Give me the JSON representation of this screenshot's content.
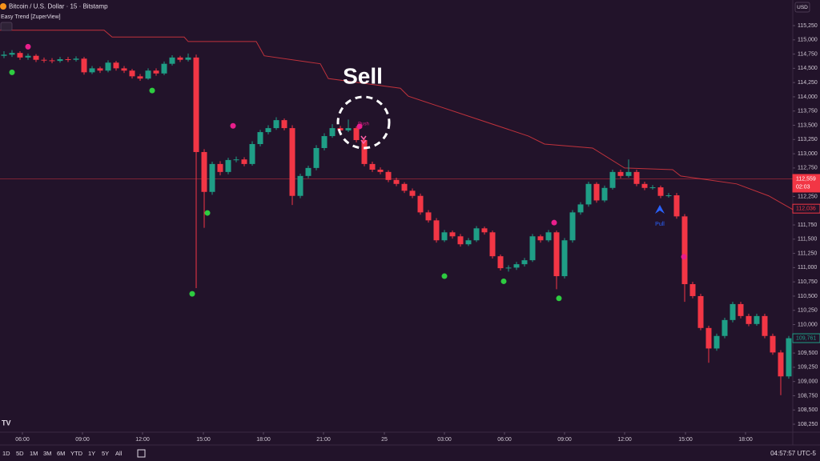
{
  "header": {
    "symbol": "Bitcoin / U.S. Dollar · 15 · Bitstamp",
    "indicator": "Easy Trend [ZuperView]",
    "currency": "USD"
  },
  "annotations": {
    "sell": "Sell",
    "push": "Push",
    "pull": "Pull"
  },
  "toolbar": {
    "ranges": [
      "1D",
      "5D",
      "1M",
      "3M",
      "6M",
      "YTD",
      "1Y",
      "5Y",
      "All"
    ],
    "clock": "04:57:57 UTC-5"
  },
  "chart_data": {
    "type": "candlestick",
    "up_color": "#1f9e86",
    "down_color": "#f23645",
    "grid": false,
    "xlim": [
      -0.5,
      98.5
    ],
    "ylim": [
      108110,
      115700
    ],
    "xticks": [
      {
        "value": 2.3,
        "label": "06:00"
      },
      {
        "value": 9.8,
        "label": "09:00"
      },
      {
        "value": 17.3,
        "label": "12:00"
      },
      {
        "value": 24.9,
        "label": "15:00"
      },
      {
        "value": 32.4,
        "label": "18:00"
      },
      {
        "value": 39.9,
        "label": "21:00"
      },
      47.5,
      {
        "value": 55,
        "label": "03:00"
      },
      {
        "value": 62.5,
        "label": "06:00"
      },
      {
        "value": 70,
        "label": "09:00"
      },
      {
        "value": 77.5,
        "label": "12:00"
      },
      {
        "value": 85.1,
        "label": "15:00"
      },
      {
        "value": 92.6,
        "label": "18:00"
      }
    ],
    "xtick_day_label": "25",
    "yticks": [
      {
        "value": 115250,
        "label": "115,250"
      },
      {
        "value": 115000,
        "label": "115,000"
      },
      {
        "value": 114750,
        "label": "114,750"
      },
      {
        "value": 114500,
        "label": "114,500"
      },
      {
        "value": 114250,
        "label": "114,250"
      },
      {
        "value": 114000,
        "label": "114,000"
      },
      {
        "value": 113750,
        "label": "113,750"
      },
      {
        "value": 113500,
        "label": "113,500"
      },
      {
        "value": 113250,
        "label": "113,250"
      },
      {
        "value": 113000,
        "label": "113,000"
      },
      {
        "value": 112750,
        "label": "112,750"
      },
      {
        "value": 112500,
        "label": "112,500"
      },
      {
        "value": 112250,
        "label": "112,250"
      },
      {
        "value": 112000,
        "label": "112,000"
      },
      {
        "value": 111750,
        "label": "111,750"
      },
      {
        "value": 111500,
        "label": "111,500"
      },
      {
        "value": 111250,
        "label": "111,250"
      },
      {
        "value": 111000,
        "label": "111,000"
      },
      {
        "value": 110750,
        "label": "110,750"
      },
      {
        "value": 110500,
        "label": "110,500"
      },
      {
        "value": 110250,
        "label": "110,250"
      },
      {
        "value": 110000,
        "label": "110,000"
      },
      {
        "value": 109750,
        "label": "109,750"
      },
      {
        "value": 109500,
        "label": "109,500"
      },
      {
        "value": 109250,
        "label": "109,250"
      },
      {
        "value": 109000,
        "label": "109,000"
      },
      {
        "value": 108750,
        "label": "108,750"
      },
      {
        "value": 108500,
        "label": "108,500"
      },
      {
        "value": 108250,
        "label": "108,250"
      }
    ],
    "candles": [
      [
        114720,
        114800,
        114680,
        114740
      ],
      [
        114740,
        114820,
        114700,
        114770
      ],
      [
        114770,
        114800,
        114650,
        114690
      ],
      [
        114690,
        114760,
        114650,
        114720
      ],
      [
        114720,
        114750,
        114610,
        114650
      ],
      [
        114650,
        114690,
        114600,
        114640
      ],
      [
        114640,
        114680,
        114590,
        114630
      ],
      [
        114630,
        114700,
        114600,
        114660
      ],
      [
        114660,
        114700,
        114610,
        114650
      ],
      [
        114650,
        114710,
        114620,
        114670
      ],
      [
        114670,
        114700,
        114390,
        114430
      ],
      [
        114430,
        114540,
        114400,
        114500
      ],
      [
        114500,
        114530,
        114420,
        114460
      ],
      [
        114460,
        114640,
        114430,
        114600
      ],
      [
        114600,
        114630,
        114460,
        114500
      ],
      [
        114500,
        114540,
        114420,
        114460
      ],
      [
        114460,
        114490,
        114320,
        114360
      ],
      [
        114360,
        114400,
        114280,
        114320
      ],
      [
        114320,
        114500,
        114300,
        114460
      ],
      [
        114460,
        114500,
        114370,
        114410
      ],
      [
        114410,
        114620,
        114380,
        114580
      ],
      [
        114580,
        114730,
        114550,
        114690
      ],
      [
        114690,
        114720,
        114610,
        114650
      ],
      [
        114650,
        114760,
        114620,
        114690
      ],
      [
        114690,
        114740,
        110640,
        113030
      ],
      [
        113030,
        113080,
        111700,
        112330
      ],
      [
        112330,
        112860,
        112280,
        112820
      ],
      [
        112820,
        112870,
        112620,
        112680
      ],
      [
        112680,
        112930,
        112640,
        112890
      ],
      [
        112890,
        112950,
        112850,
        112900
      ],
      [
        112900,
        112940,
        112780,
        112820
      ],
      [
        112820,
        113220,
        112790,
        113170
      ],
      [
        113170,
        113420,
        113130,
        113380
      ],
      [
        113380,
        113500,
        113340,
        113450
      ],
      [
        113450,
        113640,
        113420,
        113590
      ],
      [
        113590,
        113620,
        113410,
        113450
      ],
      [
        113450,
        113500,
        112100,
        112260
      ],
      [
        112260,
        112650,
        112220,
        112610
      ],
      [
        112610,
        112790,
        112570,
        112750
      ],
      [
        112750,
        113150,
        112710,
        113100
      ],
      [
        113100,
        113360,
        113060,
        113310
      ],
      [
        113310,
        113520,
        113280,
        113450
      ],
      [
        113450,
        113490,
        113370,
        113410
      ],
      [
        113410,
        113600,
        113380,
        113450
      ],
      [
        113450,
        113480,
        113200,
        113240
      ],
      [
        113240,
        113280,
        112780,
        112820
      ],
      [
        112820,
        112860,
        112680,
        112720
      ],
      [
        112720,
        112760,
        112640,
        112680
      ],
      [
        112680,
        112710,
        112500,
        112540
      ],
      [
        112540,
        112580,
        112430,
        112470
      ],
      [
        112470,
        112500,
        112310,
        112350
      ],
      [
        112350,
        112390,
        112220,
        112260
      ],
      [
        112260,
        112300,
        111930,
        111970
      ],
      [
        111970,
        112010,
        111790,
        111830
      ],
      [
        111830,
        111870,
        111440,
        111480
      ],
      [
        111480,
        111660,
        111450,
        111620
      ],
      [
        111620,
        111650,
        111510,
        111550
      ],
      [
        111550,
        111590,
        111370,
        111410
      ],
      [
        111410,
        111520,
        111380,
        111480
      ],
      [
        111480,
        111730,
        111450,
        111690
      ],
      [
        111690,
        111720,
        111580,
        111620
      ],
      [
        111620,
        111650,
        111160,
        111200
      ],
      [
        111200,
        111230,
        110950,
        110990
      ],
      [
        110990,
        111040,
        110930,
        111000
      ],
      [
        111000,
        111100,
        110960,
        111060
      ],
      [
        111060,
        111170,
        111020,
        111130
      ],
      [
        111130,
        111590,
        111100,
        111550
      ],
      [
        111550,
        111580,
        111440,
        111480
      ],
      [
        111480,
        111660,
        111450,
        111620
      ],
      [
        111620,
        111650,
        110620,
        110850
      ],
      [
        110850,
        111520,
        110810,
        111480
      ],
      [
        111480,
        112010,
        111440,
        111970
      ],
      [
        111970,
        112150,
        111930,
        112110
      ],
      [
        112110,
        112510,
        112070,
        112470
      ],
      [
        112470,
        112500,
        112140,
        112180
      ],
      [
        112180,
        112440,
        112150,
        112400
      ],
      [
        112400,
        112720,
        112370,
        112680
      ],
      [
        112680,
        112720,
        112570,
        112610
      ],
      [
        112610,
        112900,
        112580,
        112680
      ],
      [
        112680,
        112720,
        112430,
        112470
      ],
      [
        112470,
        112510,
        112360,
        112400
      ],
      [
        112400,
        112450,
        112370,
        112410
      ],
      [
        112410,
        112440,
        112220,
        112260
      ],
      [
        112260,
        112310,
        112230,
        112270
      ],
      [
        112270,
        112310,
        111860,
        111900
      ],
      [
        111900,
        111940,
        110400,
        110710
      ],
      [
        110710,
        110750,
        110460,
        110500
      ],
      [
        110500,
        110540,
        109900,
        109940
      ],
      [
        109940,
        109980,
        109330,
        109580
      ],
      [
        109580,
        109840,
        109540,
        109800
      ],
      [
        109800,
        110120,
        109760,
        110080
      ],
      [
        110080,
        110400,
        110040,
        110360
      ],
      [
        110360,
        110400,
        110110,
        110150
      ],
      [
        110150,
        110190,
        109970,
        110010
      ],
      [
        110010,
        110190,
        109980,
        110150
      ],
      [
        110150,
        110190,
        109760,
        109800
      ],
      [
        109800,
        109840,
        109470,
        109510
      ],
      [
        109510,
        109550,
        108760,
        109090
      ],
      [
        109090,
        109800,
        109050,
        109760
      ]
    ],
    "trail": {
      "color": "#c0323c",
      "x": [
        -0.5,
        12.5,
        13.5,
        22.5,
        23,
        31.5,
        32.5,
        39.5,
        40.5,
        49.5,
        50.5,
        53.5,
        59.5,
        65.5,
        67.5,
        73.5,
        77.5,
        83.5,
        84.5,
        91.5,
        95.5,
        98.5
      ],
      "values": [
        115170,
        115170,
        115050,
        115050,
        114970,
        114970,
        114720,
        114580,
        114320,
        114150,
        114010,
        113870,
        113590,
        113310,
        113170,
        113100,
        112750,
        112720,
        112610,
        112470,
        112260,
        112020
      ]
    },
    "bull_dots": {
      "color": "#2ecc40",
      "x": [
        1,
        18.5,
        23.5,
        25.4,
        55,
        62.4,
        69.3
      ],
      "values": [
        114430,
        114110,
        110540,
        111960,
        110850,
        110760,
        110460
      ]
    },
    "bear_dots": {
      "color": "#e91e8c",
      "x": [
        3,
        28.6,
        68.7,
        84.9,
        44.4
      ],
      "values": [
        114880,
        113490,
        111790,
        111190,
        113480
      ]
    },
    "last_price": {
      "value": 112559,
      "label": "112,559"
    },
    "countdown": "02:03",
    "stop_label": {
      "value": 112036,
      "label": "112,036"
    },
    "marker_label": {
      "value": 109761,
      "label": "109,761"
    }
  }
}
